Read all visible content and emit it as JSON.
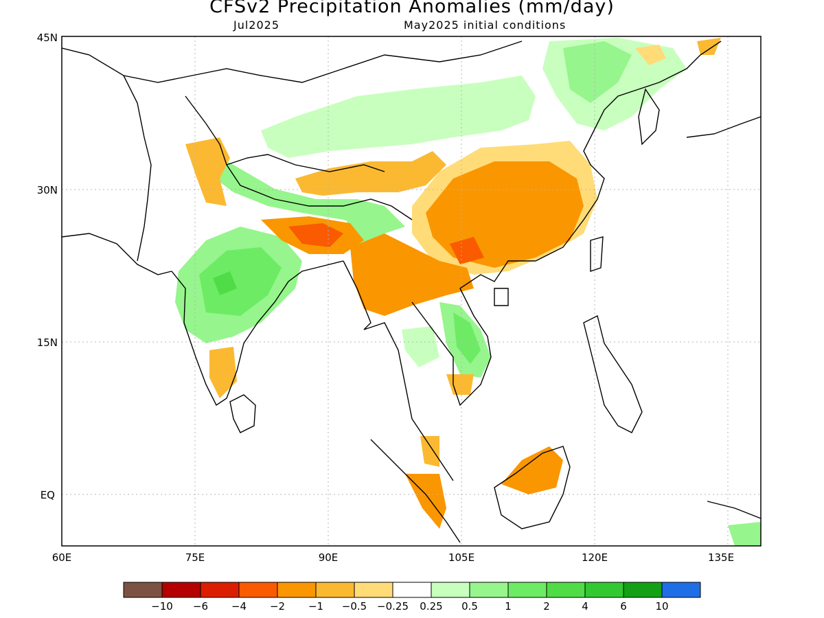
{
  "title": "CFSv2 Precipitation Anomalies (mm/day)",
  "subtitle_left": "Jul2025",
  "subtitle_right": "May2025 initial conditions",
  "lat_labels": [
    "45N",
    "30N",
    "15N",
    "EQ"
  ],
  "lon_labels": [
    "60E",
    "75E",
    "90E",
    "105E",
    "120E",
    "135E"
  ],
  "legend": {
    "colors": [
      "#7b5244",
      "#b40000",
      "#dc1e00",
      "#fa5a00",
      "#fa9600",
      "#fbb932",
      "#ffdc78",
      "#ffffff",
      "#c8ffbe",
      "#96f58c",
      "#6eeb64",
      "#50dc46",
      "#32c832",
      "#14a014",
      "#1e6ee6"
    ],
    "labels": [
      "-10",
      "-6",
      "-4",
      "-2",
      "-1",
      "-0.5",
      "-0.25",
      "0.25",
      "0.5",
      "1",
      "2",
      "4",
      "6",
      "10"
    ]
  },
  "colors": {
    "frame": "#000000",
    "grid": "#b4b4b4",
    "coast": "#000000"
  }
}
